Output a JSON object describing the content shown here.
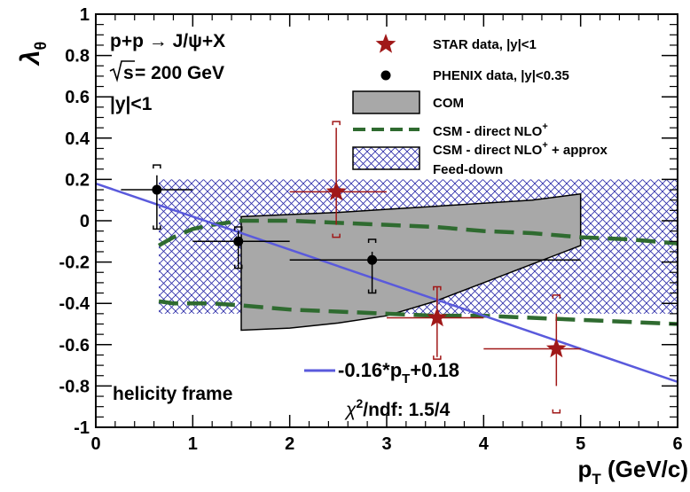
{
  "chart_data": {
    "type": "scatter",
    "xlabel": {
      "main": "p",
      "sub": "T",
      "unit": " (GeV/c)"
    },
    "ylabel": {
      "main": "λ",
      "sub": "θ"
    },
    "xlim": [
      0,
      6
    ],
    "ylim": [
      -1,
      1
    ],
    "x_ticks": [
      0,
      1,
      2,
      3,
      4,
      5,
      6
    ],
    "y_ticks": [
      -1,
      -0.8,
      -0.6,
      -0.4,
      -0.2,
      0,
      0.2,
      0.4,
      0.6,
      0.8,
      1
    ],
    "x_tick_labels": [
      "0",
      "1",
      "2",
      "3",
      "4",
      "5",
      "6"
    ],
    "y_tick_labels": [
      "-1",
      "-0.8",
      "-0.6",
      "-0.4",
      "-0.2",
      "0",
      "0.2",
      "0.4",
      "0.6",
      "0.8",
      "1"
    ],
    "grid": false,
    "annotations": {
      "reaction": "p+p → J/ψ+X",
      "energy_prefix": "s",
      "energy_value": " = 200 GeV",
      "rapidity": "|y|<1",
      "frame": "helicity frame",
      "fit_label": "-0.16*p",
      "fit_label_sub": "T",
      "fit_label_rest": "+0.18",
      "chi2_label": "χ",
      "chi2_sup": "2",
      "chi2_rest": "/ndf: 1.5/4"
    },
    "legend": {
      "placement": "top-right",
      "entries": [
        {
          "key": "star",
          "text": "STAR data, |y|<1"
        },
        {
          "key": "phenix",
          "text": "PHENIX data, |y|<0.35"
        },
        {
          "key": "com",
          "text": "COM"
        },
        {
          "key": "csm",
          "text": "CSM - direct NLO",
          "sup": "+"
        },
        {
          "key": "csm_approx",
          "text": "CSM - direct NLO",
          "sup": "+",
          "rest": " + approx",
          "line2": "Feed-down"
        }
      ]
    },
    "colors": {
      "star": "#a01818",
      "phenix": "#000000",
      "com_fill": "#a8a8a8",
      "csm": "#2f6b30",
      "hatch": "#2a2aa8",
      "fit": "#5a5adc"
    },
    "series": [
      {
        "name": "STAR data, |y|<1",
        "marker": "star",
        "points": [
          {
            "x": 2.48,
            "y": 0.14,
            "xerr": [
              0.48,
              0.52
            ],
            "stat": [
              -0.16,
              0.31
            ],
            "sys": [
              -0.22,
              0.34
            ]
          },
          {
            "x": 3.52,
            "y": -0.47,
            "xerr": [
              0.52,
              0.48
            ],
            "stat": [
              -0.19,
              0.15
            ],
            "sys": [
              -0.2,
              0.15
            ]
          },
          {
            "x": 4.75,
            "y": -0.62,
            "xerr": [
              0.75,
              0.25
            ],
            "stat": [
              -0.18,
              0.17
            ],
            "sys": [
              -0.31,
              0.26
            ]
          }
        ]
      },
      {
        "name": "PHENIX data, |y|<0.35",
        "marker": "circle",
        "points": [
          {
            "x": 0.63,
            "y": 0.15,
            "xerr": [
              0.37,
              0.37
            ],
            "stat": [
              -0.19,
              0.07
            ],
            "sys": [
              -0.19,
              0.12
            ]
          },
          {
            "x": 1.47,
            "y": -0.1,
            "xerr": [
              0.47,
              0.53
            ],
            "stat": [
              -0.13,
              0.05
            ],
            "sys": [
              -0.13,
              0.07
            ]
          },
          {
            "x": 2.85,
            "y": -0.19,
            "xerr": [
              0.85,
              2.15
            ],
            "stat": [
              -0.16,
              0.04
            ],
            "sys": [
              -0.16,
              0.1
            ]
          }
        ]
      }
    ],
    "com_band": {
      "x": [
        1.5,
        2,
        2.5,
        3,
        3.5,
        4,
        4.5,
        5
      ],
      "upper": [
        0.02,
        0.03,
        0.04,
        0.055,
        0.07,
        0.085,
        0.1,
        0.13
      ],
      "lower": [
        -0.53,
        -0.52,
        -0.495,
        -0.46,
        -0.39,
        -0.3,
        -0.21,
        -0.12
      ]
    },
    "csm_band": {
      "x": [
        0.65,
        0.8,
        1,
        1.2,
        1.5,
        2,
        2.5,
        3,
        3.5,
        4,
        4.5,
        5,
        5.5,
        6
      ],
      "upper": [
        -0.12,
        -0.08,
        -0.04,
        -0.02,
        0,
        0,
        -0.01,
        -0.02,
        -0.03,
        -0.05,
        -0.06,
        -0.08,
        -0.09,
        -0.11
      ],
      "lower": [
        -0.39,
        -0.4,
        -0.4,
        -0.4,
        -0.41,
        -0.43,
        -0.44,
        -0.45,
        -0.46,
        -0.46,
        -0.47,
        -0.48,
        -0.49,
        -0.5
      ]
    },
    "feeddown_band": {
      "x": [
        0.65,
        1.0,
        6.0
      ],
      "upper": [
        0.2,
        0.2,
        0.2
      ],
      "lower": [
        -0.45,
        -0.45,
        -0.45
      ]
    },
    "fit_line": {
      "slope": -0.16,
      "intercept": 0.18,
      "x_range": [
        0,
        6
      ]
    }
  }
}
